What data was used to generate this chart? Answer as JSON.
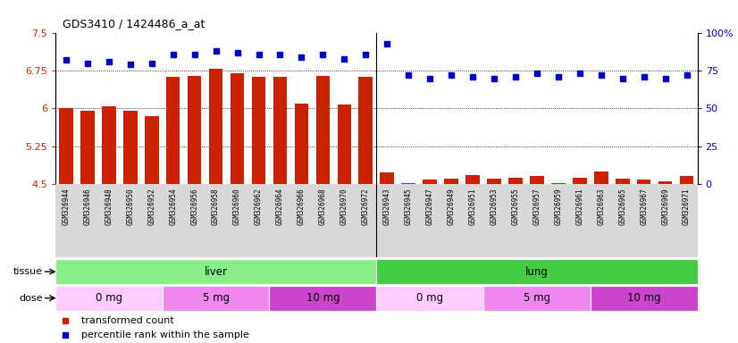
{
  "title": "GDS3410 / 1424486_a_at",
  "samples": [
    "GSM326944",
    "GSM326946",
    "GSM326948",
    "GSM326950",
    "GSM326952",
    "GSM326954",
    "GSM326956",
    "GSM326958",
    "GSM326960",
    "GSM326962",
    "GSM326964",
    "GSM326966",
    "GSM326968",
    "GSM326970",
    "GSM326972",
    "GSM326943",
    "GSM326945",
    "GSM326947",
    "GSM326949",
    "GSM326951",
    "GSM326953",
    "GSM326955",
    "GSM326957",
    "GSM326959",
    "GSM326961",
    "GSM326963",
    "GSM326965",
    "GSM326967",
    "GSM326969",
    "GSM326971"
  ],
  "transformed_count": [
    6.0,
    5.95,
    6.05,
    5.95,
    5.85,
    6.62,
    6.65,
    6.78,
    6.7,
    6.62,
    6.62,
    6.1,
    6.65,
    6.07,
    6.62,
    4.73,
    4.52,
    4.58,
    4.6,
    4.68,
    4.6,
    4.62,
    4.65,
    4.52,
    4.62,
    4.75,
    4.6,
    4.58,
    4.55,
    4.65
  ],
  "percentile_rank": [
    82,
    80,
    81,
    79,
    80,
    86,
    86,
    88,
    87,
    86,
    86,
    84,
    86,
    83,
    86,
    93,
    72,
    70,
    72,
    71,
    70,
    71,
    73,
    71,
    73,
    72,
    70,
    71,
    70,
    72
  ],
  "ylim_left": [
    4.5,
    7.5
  ],
  "ylim_right": [
    0,
    100
  ],
  "yticks_left": [
    4.5,
    5.25,
    6.0,
    6.75,
    7.5
  ],
  "yticks_right": [
    0,
    25,
    50,
    75,
    100
  ],
  "bar_color": "#cc2200",
  "dot_color": "#0000cc",
  "tissue_liver_color": "#88ee88",
  "tissue_lung_color": "#44cc44",
  "dose_0mg_color": "#ffccff",
  "dose_5mg_color": "#ee88ee",
  "dose_10mg_color": "#cc44cc",
  "tissue_groups": [
    {
      "label": "liver",
      "start": 0,
      "end": 15
    },
    {
      "label": "lung",
      "start": 15,
      "end": 30
    }
  ],
  "dose_groups": [
    {
      "label": "0 mg",
      "start": 0,
      "end": 5,
      "dose": 0
    },
    {
      "label": "5 mg",
      "start": 5,
      "end": 10,
      "dose": 5
    },
    {
      "label": "10 mg",
      "start": 10,
      "end": 15,
      "dose": 10
    },
    {
      "label": "0 mg",
      "start": 15,
      "end": 20,
      "dose": 0
    },
    {
      "label": "5 mg",
      "start": 20,
      "end": 25,
      "dose": 5
    },
    {
      "label": "10 mg",
      "start": 25,
      "end": 30,
      "dose": 10
    }
  ]
}
